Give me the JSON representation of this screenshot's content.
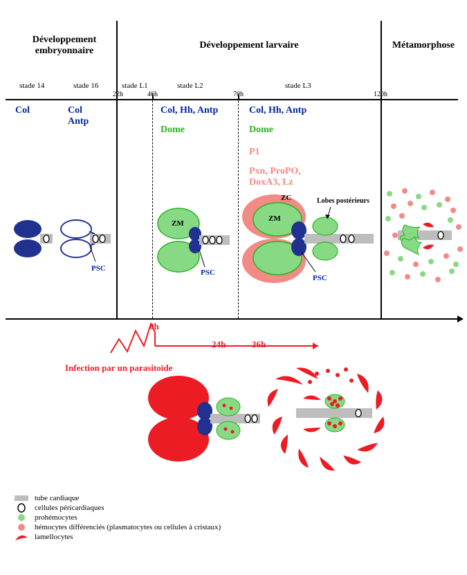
{
  "headers": {
    "embryo": "Développement\nembryonnaire",
    "larval": "Développement larvaire",
    "meta": "Métamorphose"
  },
  "stages": {
    "s14": "stade 14",
    "s16": "stade 16",
    "sL1": "stade L1",
    "sL2": "stade L2",
    "sL3": "stade L3"
  },
  "times": {
    "t22": "22h",
    "t46": "46h",
    "t70": "70h",
    "t120": "120h"
  },
  "genes": {
    "col": "Col",
    "col_antp": "Col\nAntp",
    "col_hh_antp": "Col, Hh, Antp",
    "dome": "Dome",
    "p1": "P1",
    "pxn": "Pxn, ProPO,\nDoxA3, Lz"
  },
  "labels": {
    "psc": "PSC",
    "zm": "ZM",
    "zc": "ZC",
    "lobes": "Lobes postérieurs"
  },
  "infection": {
    "title": "Infection par un parasitoïde",
    "t0": "0h",
    "t24": "24h",
    "t36": "36h"
  },
  "legend": {
    "tube": "tube cardiaque",
    "peri": "cellules péricardiaques",
    "pro": "prohémocytes",
    "hemo": "hémocytes différenciés (plasmatocytes ou cellules à cristaux)",
    "lam": "lamellocytes"
  },
  "colors": {
    "blue": "#0225a1",
    "navy": "#20318f",
    "green": "#26b41f",
    "lgreen": "#88d984",
    "salmon": "#f28a85",
    "red": "#ec1c24",
    "grey": "#bdbdbd",
    "black": "#000"
  }
}
